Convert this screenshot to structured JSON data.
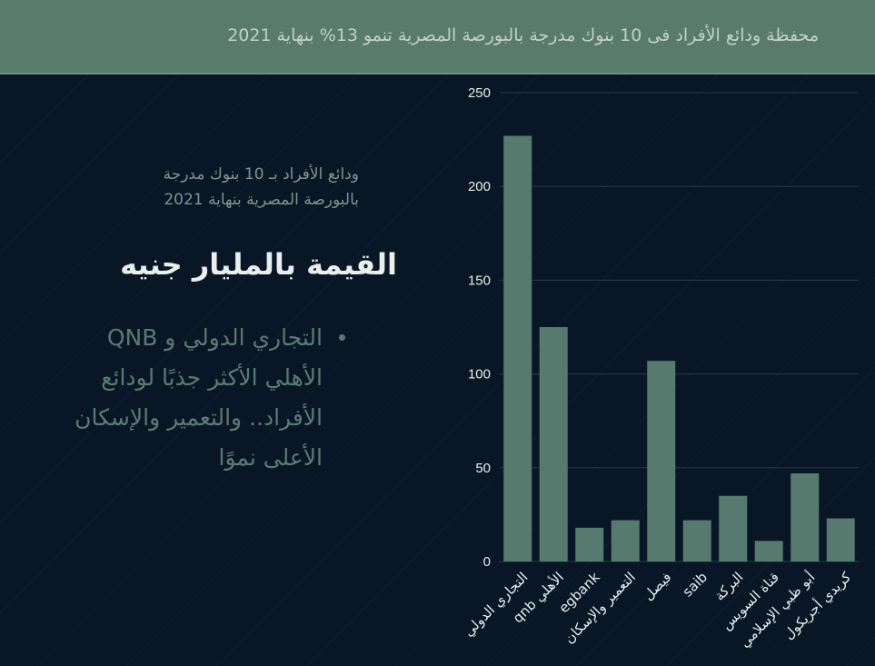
{
  "header": {
    "title": "محفظة ودائع الأفراد فى 10 بنوك مدرجة بالبورصة المصرية تنمو 13% بنهاية 2021"
  },
  "side": {
    "subtitle_lines": [
      "ودائع الأفراد بـ 10 بنوك مدرجة",
      "بالبورصة المصرية بنهاية 2021"
    ],
    "unit": "القيمة بالمليار جنيه",
    "bullet_lines": [
      "التجاري الدولي و QNB",
      "الأهلي الأكثر جذبًا لودائع",
      "الأفراد.. والتعمير والإسكان",
      "الأعلى نموًا"
    ]
  },
  "colors": {
    "bar": "#567a6d",
    "background": "#091626",
    "header": "#5a7a6e"
  },
  "chart_data": {
    "type": "bar",
    "title": "",
    "xlabel": "",
    "ylabel": "",
    "categories": [
      "التجاري الدولي",
      "qnb الأهلي",
      "egbank",
      "التعمير والإسكان",
      "فيصل",
      "saib",
      "البركة",
      "قناة السويس",
      "أبو ظبي الإسلامي",
      "كريدي أجريكول"
    ],
    "values": [
      227,
      125,
      18,
      22,
      107,
      22,
      35,
      11,
      47,
      23
    ],
    "ylim": [
      0,
      250
    ],
    "yticks": [
      0,
      50,
      100,
      150,
      200,
      250
    ],
    "grid": true
  }
}
